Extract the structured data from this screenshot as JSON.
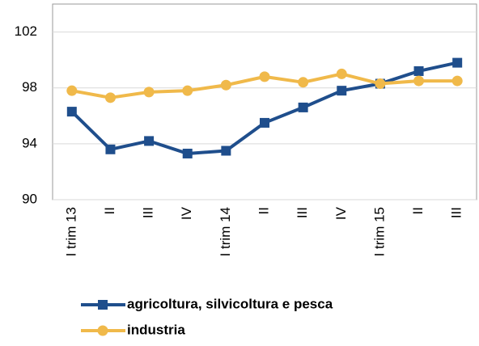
{
  "chart_data": {
    "type": "line",
    "categories": [
      "I trim 13",
      "II",
      "III",
      "IV",
      "I trim 14",
      "II",
      "III",
      "IV",
      "I trim 15",
      "II",
      "III"
    ],
    "series": [
      {
        "name": "agricoltura, silvicoltura e pesca",
        "color": "#1f4e8c",
        "marker": "square",
        "values": [
          96.3,
          93.6,
          94.2,
          93.3,
          93.5,
          95.5,
          96.6,
          97.8,
          98.3,
          99.2,
          99.8
        ]
      },
      {
        "name": "industria",
        "color": "#f0b94a",
        "marker": "circle",
        "values": [
          97.8,
          97.3,
          97.7,
          97.8,
          98.2,
          98.8,
          98.4,
          99.0,
          98.3,
          98.5,
          98.5
        ]
      }
    ],
    "ylim": [
      90,
      104
    ],
    "yticks": [
      90,
      94,
      98,
      102
    ],
    "grid": true,
    "legend": "bottom"
  }
}
